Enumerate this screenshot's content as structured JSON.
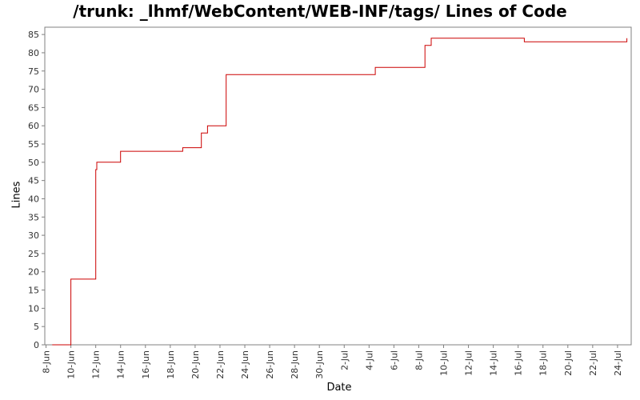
{
  "chart_data": {
    "type": "line",
    "title": "/trunk: _lhmf/WebContent/WEB-INF/tags/ Lines of Code",
    "xlabel": "Date",
    "ylabel": "Lines",
    "ylim": [
      0,
      87
    ],
    "yticks": [
      0,
      5,
      10,
      15,
      20,
      25,
      30,
      35,
      40,
      45,
      50,
      55,
      60,
      65,
      70,
      75,
      80,
      85
    ],
    "xlim": [
      "8-Jun",
      "25-Jul"
    ],
    "xticks": [
      "8-Jun",
      "10-Jun",
      "12-Jun",
      "14-Jun",
      "16-Jun",
      "18-Jun",
      "20-Jun",
      "22-Jun",
      "24-Jun",
      "26-Jun",
      "28-Jun",
      "30-Jun",
      "2-Jul",
      "4-Jul",
      "6-Jul",
      "8-Jul",
      "10-Jul",
      "12-Jul",
      "14-Jul",
      "16-Jul",
      "18-Jul",
      "20-Jul",
      "22-Jul",
      "24-Jul"
    ],
    "step": true,
    "grid": false,
    "color": "#cc0000",
    "series": [
      {
        "x": [
          "8-Jun 12:00",
          "10-Jun",
          "12-Jun",
          "12-Jun 00:00",
          "12-Jun 02:00",
          "13-Jun",
          "14-Jun",
          "18-Jun 12:00",
          "19-Jun",
          "19-Jun 12:00",
          "20-Jun 12:00",
          "21-Jun",
          "22-Jun 12:00",
          "26-Jun",
          "2-Jul",
          "4-Jul",
          "4-Jul 12:00",
          "8-Jul",
          "8-Jul 12:00",
          "9-Jul",
          "12-Jul",
          "16-Jul",
          "16-Jul 12:00",
          "20-Jul",
          "24-Jul 12:00",
          "24-Jul 18:00"
        ],
        "values": [
          0,
          18,
          18,
          48,
          50,
          50,
          53,
          53,
          54,
          54,
          58,
          60,
          74,
          74,
          74,
          74,
          76,
          76,
          82,
          84,
          84,
          84,
          83,
          83,
          83,
          84
        ]
      }
    ]
  }
}
